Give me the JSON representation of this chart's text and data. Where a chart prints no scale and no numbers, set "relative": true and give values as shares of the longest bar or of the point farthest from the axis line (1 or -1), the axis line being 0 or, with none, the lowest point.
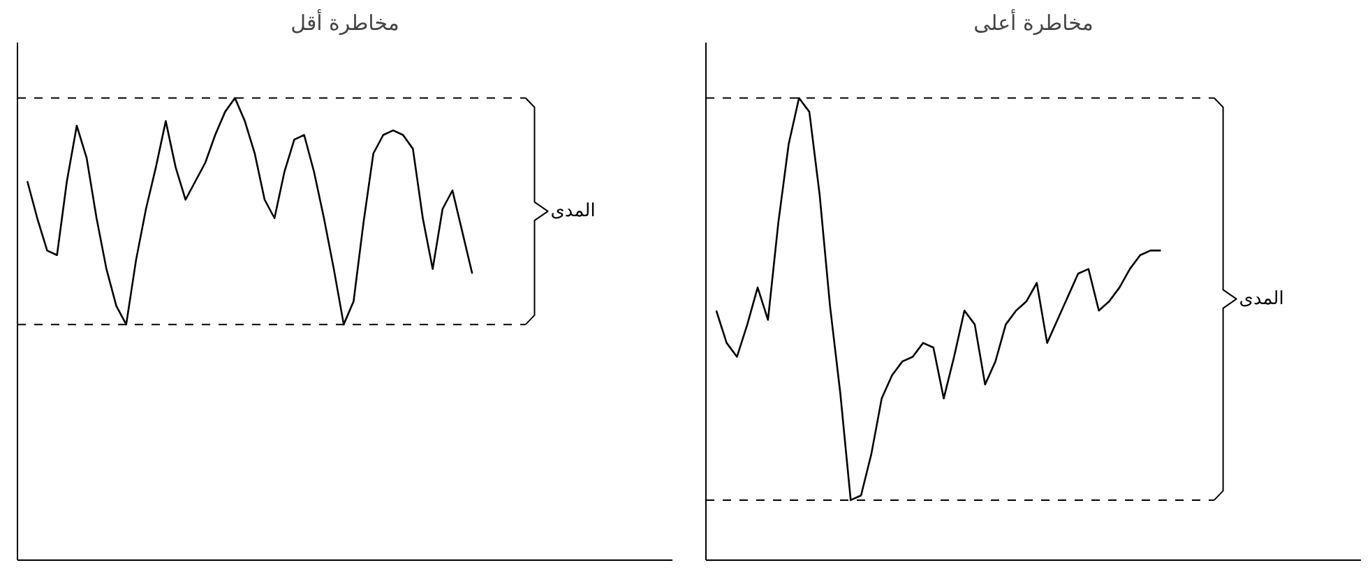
{
  "chart_data": [
    {
      "type": "line",
      "title": "مخاطرة أقل",
      "relative": true,
      "marker": "none",
      "line_style": "solid",
      "categories": [
        null,
        null,
        null,
        null,
        null,
        null,
        null,
        null,
        null,
        null,
        null,
        null,
        null,
        null,
        null,
        null,
        null,
        null,
        null,
        null,
        null,
        null,
        null,
        null,
        null,
        null,
        null,
        null,
        null,
        null,
        null,
        null,
        null,
        null,
        null,
        null,
        null,
        null,
        null,
        null,
        null,
        null,
        null,
        null,
        null,
        null
      ],
      "series": [
        {
          "color": "#000000",
          "values": [
            0.82,
            0.74,
            0.67,
            0.66,
            0.82,
            0.94,
            0.87,
            0.74,
            0.63,
            0.55,
            0.51,
            0.65,
            0.76,
            0.85,
            0.95,
            0.85,
            0.78,
            0.82,
            0.86,
            0.92,
            0.97,
            1,
            0.95,
            0.88,
            0.78,
            0.74,
            0.84,
            0.91,
            0.92,
            0.84,
            0.74,
            0.63,
            0.51,
            0.56,
            0.73,
            0.88,
            0.92,
            0.93,
            0.92,
            0.89,
            0.74,
            0.63,
            0.76,
            0.8,
            0.71,
            0.62
          ]
        }
      ],
      "ref_lines": [
        {
          "axis": "y",
          "value": 1,
          "line_style": "dashed",
          "color": "#000000"
        },
        {
          "axis": "y",
          "value": 0.51,
          "line_style": "dashed",
          "color": "#000000"
        }
      ],
      "annotations": [
        "المدى"
      ]
    },
    {
      "type": "line",
      "title": "مخاطرة أعلى",
      "relative": true,
      "marker": "none",
      "line_style": "solid",
      "categories": [
        null,
        null,
        null,
        null,
        null,
        null,
        null,
        null,
        null,
        null,
        null,
        null,
        null,
        null,
        null,
        null,
        null,
        null,
        null,
        null,
        null,
        null,
        null,
        null,
        null,
        null,
        null,
        null,
        null,
        null,
        null,
        null,
        null,
        null,
        null,
        null,
        null,
        null,
        null,
        null,
        null,
        null,
        null,
        null
      ],
      "series": [
        {
          "color": "#000000",
          "values": [
            0.54,
            0.47,
            0.44,
            0.51,
            0.59,
            0.52,
            0.73,
            0.9,
            1,
            0.97,
            0.79,
            0.55,
            0.36,
            0.13,
            0.14,
            0.23,
            0.35,
            0.4,
            0.43,
            0.44,
            0.47,
            0.46,
            0.35,
            0.44,
            0.54,
            0.51,
            0.38,
            0.43,
            0.51,
            0.54,
            0.56,
            0.6,
            0.47,
            0.52,
            0.57,
            0.62,
            0.63,
            0.54,
            0.56,
            0.59,
            0.63,
            0.66,
            0.67,
            0.67
          ]
        }
      ],
      "ref_lines": [
        {
          "axis": "y",
          "value": 1,
          "line_style": "dashed",
          "color": "#000000"
        },
        {
          "axis": "y",
          "value": 0.13,
          "line_style": "dashed",
          "color": "#000000"
        }
      ],
      "annotations": [
        "المدى"
      ]
    }
  ]
}
